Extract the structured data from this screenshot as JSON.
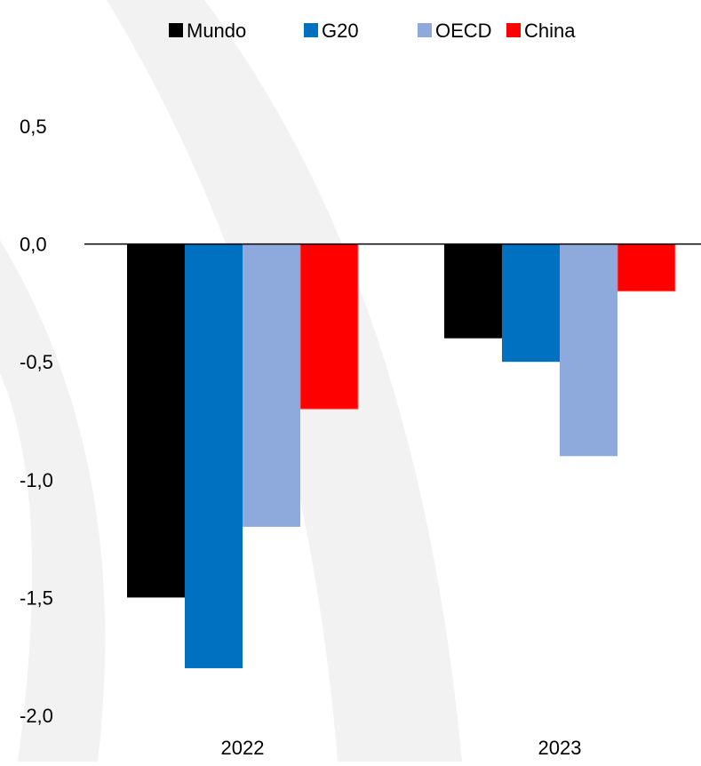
{
  "chart_data": {
    "type": "bar",
    "categories": [
      "2022",
      "2023"
    ],
    "series": [
      {
        "name": "Mundo",
        "color": "#000000",
        "values": [
          -1.5,
          -0.4
        ]
      },
      {
        "name": "G20",
        "color": "#0070C0",
        "values": [
          -1.8,
          -0.5
        ]
      },
      {
        "name": "OECD",
        "color": "#8EA9DB",
        "values": [
          -1.2,
          -0.9
        ]
      },
      {
        "name": "China",
        "color": "#FF0000",
        "values": [
          -0.7,
          -0.2
        ]
      }
    ],
    "ylim": [
      -2.0,
      0.5
    ],
    "yticks": [
      "0,5",
      "0,0",
      "-0,5",
      "-1,0",
      "-1,5",
      "-2,0"
    ],
    "ytick_values": [
      0.5,
      0.0,
      -0.5,
      -1.0,
      -1.5,
      -2.0
    ],
    "legend_position": "top-center",
    "grid": false,
    "background_decoration_color": "#F2F2F2"
  }
}
